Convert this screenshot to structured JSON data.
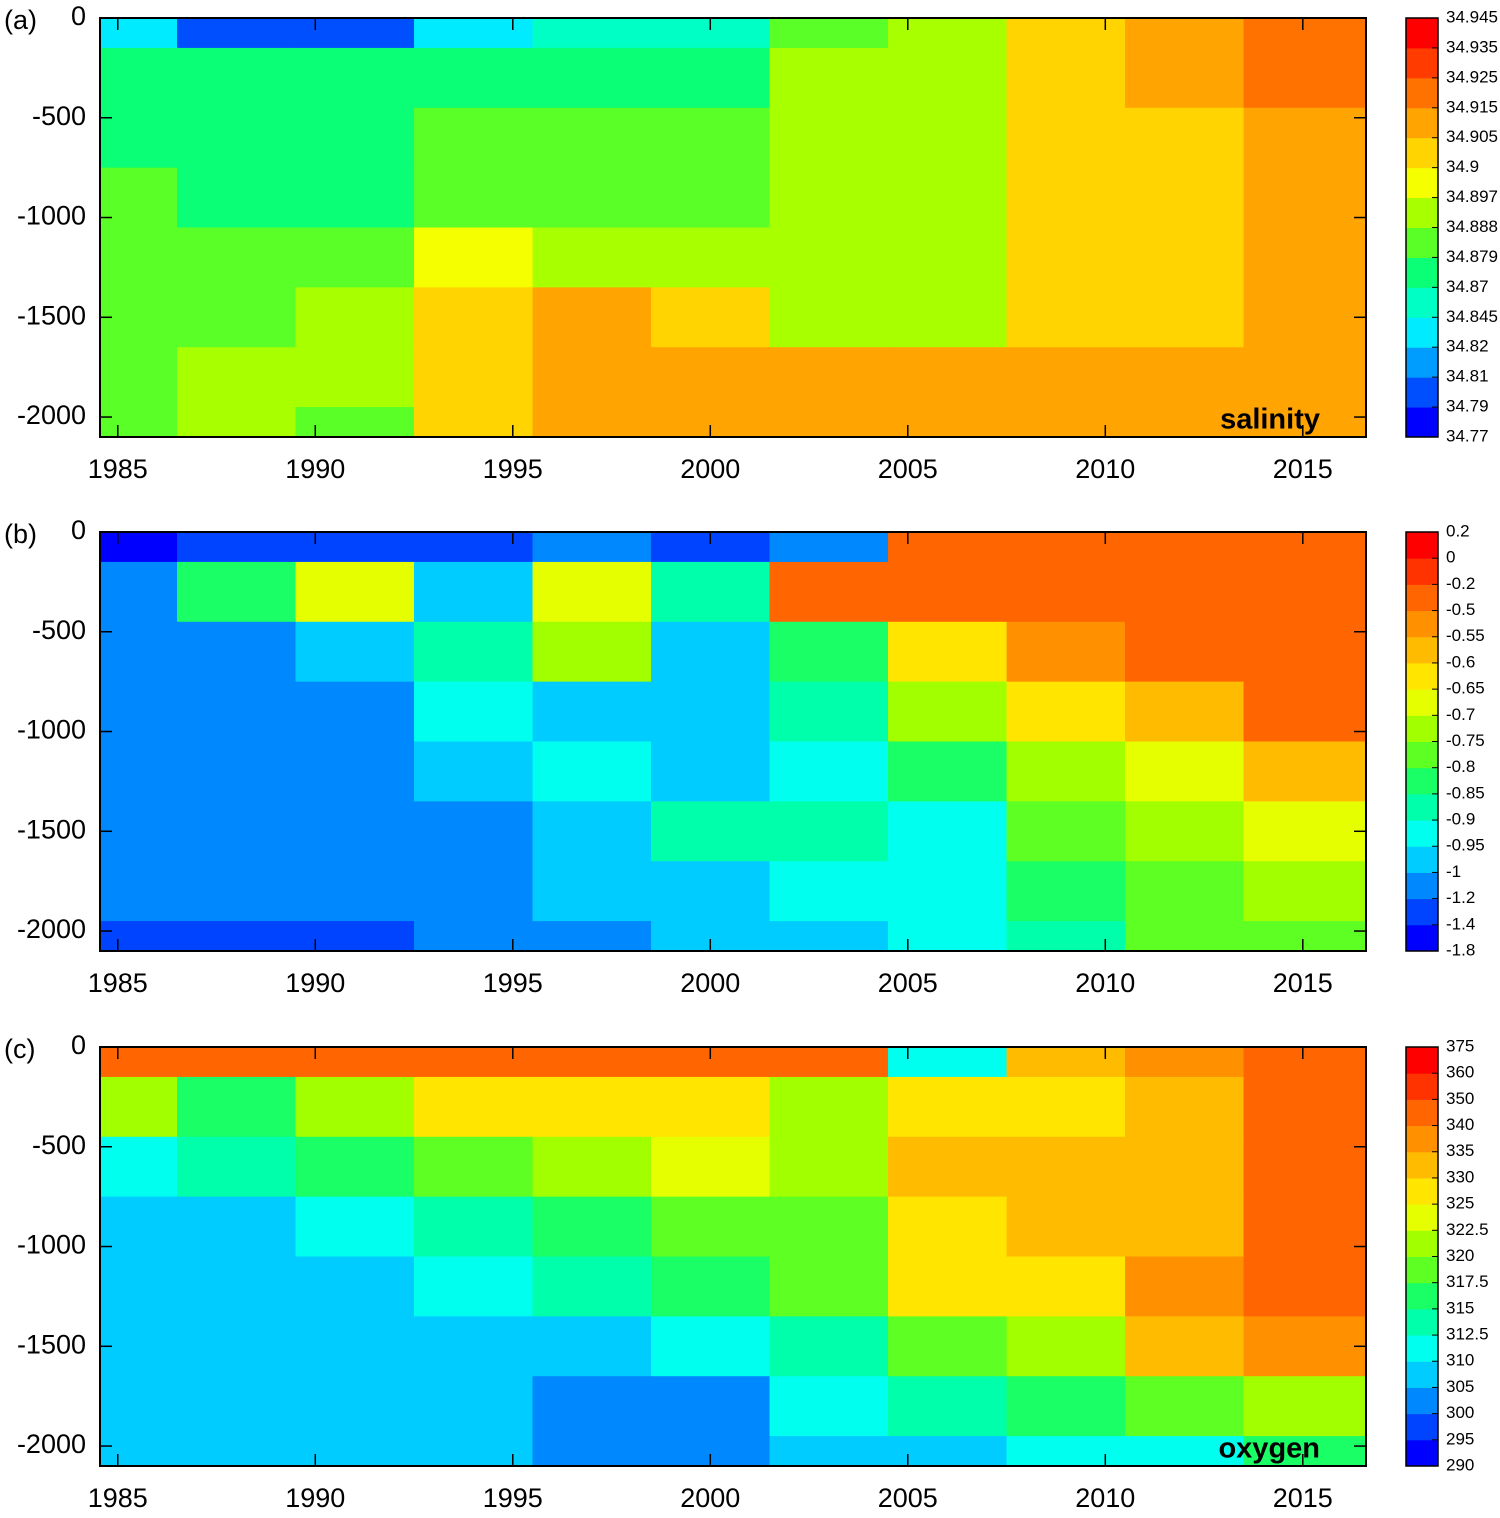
{
  "chart_data": [
    {
      "type": "heatmap",
      "panel_label": "(a)",
      "annotation": "salinity",
      "x": [
        1985,
        1988,
        1991,
        1994,
        1997,
        2000,
        2003,
        2006,
        2009,
        2012,
        2015
      ],
      "y": [
        0,
        -300,
        -600,
        -900,
        -1200,
        -1500,
        -1800,
        -2100
      ],
      "z": [
        [
          34.82,
          34.8,
          34.8,
          34.82,
          34.85,
          34.85,
          34.88,
          34.89,
          34.9,
          34.91,
          34.92
        ],
        [
          34.87,
          34.875,
          34.875,
          34.875,
          34.875,
          34.875,
          34.89,
          34.89,
          34.9,
          34.91,
          34.915
        ],
        [
          34.875,
          34.875,
          34.875,
          34.88,
          34.88,
          34.885,
          34.89,
          34.892,
          34.903,
          34.902,
          34.91
        ],
        [
          34.88,
          34.875,
          34.875,
          34.885,
          34.885,
          34.885,
          34.89,
          34.89,
          34.903,
          34.9,
          34.91
        ],
        [
          34.885,
          34.88,
          34.885,
          34.898,
          34.892,
          34.89,
          34.89,
          34.89,
          34.903,
          34.902,
          34.91
        ],
        [
          34.885,
          34.885,
          34.89,
          34.9,
          34.91,
          34.902,
          34.89,
          34.89,
          34.903,
          34.9,
          34.91
        ],
        [
          34.885,
          34.89,
          34.89,
          34.9,
          34.91,
          34.91,
          34.91,
          34.91,
          34.91,
          34.905,
          34.91
        ],
        [
          34.885,
          34.89,
          34.885,
          34.9,
          34.905,
          34.91,
          34.91,
          34.91,
          34.91,
          34.91,
          34.91
        ]
      ],
      "levels": [
        34.77,
        34.79,
        34.81,
        34.82,
        34.845,
        34.87,
        34.879,
        34.888,
        34.897,
        34.9,
        34.905,
        34.915,
        34.925,
        34.935,
        34.945
      ],
      "colormap": [
        "#0000ff",
        "#0080ff",
        "#00ffff",
        "#00ff80",
        "#80ff00",
        "#ffff00",
        "#ffb000",
        "#ff6000",
        "#ff0000"
      ],
      "xlim": [
        1984.55,
        2016.6
      ],
      "ylim": [
        -2100,
        0
      ],
      "xticks": [
        1985,
        1990,
        1995,
        2000,
        2005,
        2010,
        2015
      ],
      "yticks": [
        0,
        -500,
        -1000,
        -1500,
        -2000
      ]
    },
    {
      "type": "heatmap",
      "panel_label": "(b)",
      "x": [
        1985,
        1988,
        1991,
        1994,
        1997,
        2000,
        2003,
        2006,
        2009,
        2012,
        2015
      ],
      "y": [
        0,
        -300,
        -600,
        -900,
        -1200,
        -1500,
        -1800,
        -2100
      ],
      "z": [
        [
          -1.5,
          -1.3,
          -1.3,
          -1.3,
          -1.1,
          -1.3,
          -1.1,
          -0.3,
          -0.3,
          -0.3,
          -0.3
        ],
        [
          -1.1,
          -0.82,
          -0.7,
          -0.97,
          -0.7,
          -0.9,
          -0.3,
          -0.4,
          -0.4,
          -0.4,
          -0.35
        ],
        [
          -1.1,
          -1.1,
          -0.97,
          -0.9,
          -0.75,
          -0.97,
          -0.85,
          -0.62,
          -0.55,
          -0.5,
          -0.4
        ],
        [
          -1.1,
          -1.1,
          -1.1,
          -0.92,
          -0.97,
          -0.97,
          -0.88,
          -0.75,
          -0.65,
          -0.6,
          -0.5
        ],
        [
          -1.1,
          -1.1,
          -1.1,
          -1.0,
          -0.92,
          -0.97,
          -0.92,
          -0.82,
          -0.72,
          -0.68,
          -0.6
        ],
        [
          -1.1,
          -1.1,
          -1.1,
          -1.1,
          -0.97,
          -0.87,
          -0.88,
          -0.92,
          -0.78,
          -0.72,
          -0.68
        ],
        [
          -1.1,
          -1.1,
          -1.1,
          -1.1,
          -1.0,
          -0.97,
          -0.92,
          -0.92,
          -0.82,
          -0.78,
          -0.72
        ],
        [
          -1.3,
          -1.3,
          -1.3,
          -1.1,
          -1.1,
          -1.0,
          -0.97,
          -0.92,
          -0.87,
          -0.8,
          -0.77
        ]
      ],
      "levels": [
        -1.8,
        -1.4,
        -1.2,
        -1,
        -0.95,
        -0.9,
        -0.85,
        -0.8,
        -0.75,
        -0.7,
        -0.65,
        -0.6,
        -0.55,
        -0.5,
        -0.2,
        0,
        0.2
      ],
      "colormap": [
        "#0000ff",
        "#0080ff",
        "#00ffff",
        "#00ff80",
        "#80ff00",
        "#ffff00",
        "#ffb000",
        "#ff6000",
        "#ff0000"
      ],
      "xlim": [
        1984.55,
        2016.6
      ],
      "ylim": [
        -2100,
        0
      ],
      "xticks": [
        1985,
        1990,
        1995,
        2000,
        2005,
        2010,
        2015
      ],
      "yticks": [
        0,
        -500,
        -1000,
        -1500,
        -2000
      ]
    },
    {
      "type": "heatmap",
      "panel_label": "(c)",
      "annotation": "oxygen",
      "x": [
        1985,
        1988,
        1991,
        1994,
        1997,
        2000,
        2003,
        2006,
        2009,
        2012,
        2015
      ],
      "y": [
        0,
        -300,
        -600,
        -900,
        -1200,
        -1500,
        -1800,
        -2100
      ],
      "z": [
        [
          345,
          345,
          345,
          345,
          345,
          345,
          345,
          310,
          330,
          335,
          345
        ],
        [
          322,
          316,
          322,
          325,
          325,
          328,
          322,
          326,
          328,
          332,
          342
        ],
        [
          310,
          314,
          316,
          318,
          322,
          324,
          322,
          330,
          332,
          332,
          340
        ],
        [
          305,
          308,
          310,
          314,
          316,
          318,
          318,
          327,
          330,
          334,
          340
        ],
        [
          305,
          305,
          306,
          310,
          314,
          316,
          318,
          325,
          328,
          336,
          340
        ],
        [
          305,
          305,
          305,
          305,
          308,
          310,
          313,
          318,
          322,
          332,
          335
        ],
        [
          305,
          305,
          305,
          305,
          302,
          304,
          310,
          314,
          316,
          318,
          322
        ],
        [
          305,
          305,
          305,
          305,
          302,
          304,
          305,
          306,
          310,
          312,
          315
        ]
      ],
      "levels": [
        290,
        295,
        300,
        305,
        310,
        312.5,
        315,
        317.5,
        320,
        322.5,
        325,
        330,
        335,
        340,
        350,
        360,
        375
      ],
      "colormap": [
        "#0000ff",
        "#0080ff",
        "#00ffff",
        "#00ff80",
        "#80ff00",
        "#ffff00",
        "#ffb000",
        "#ff6000",
        "#ff0000"
      ],
      "xlim": [
        1984.55,
        2016.6
      ],
      "ylim": [
        -2100,
        0
      ],
      "xticks": [
        1985,
        1990,
        1995,
        2000,
        2005,
        2010,
        2015
      ],
      "yticks": [
        0,
        -500,
        -1000,
        -1500,
        -2000
      ]
    }
  ]
}
